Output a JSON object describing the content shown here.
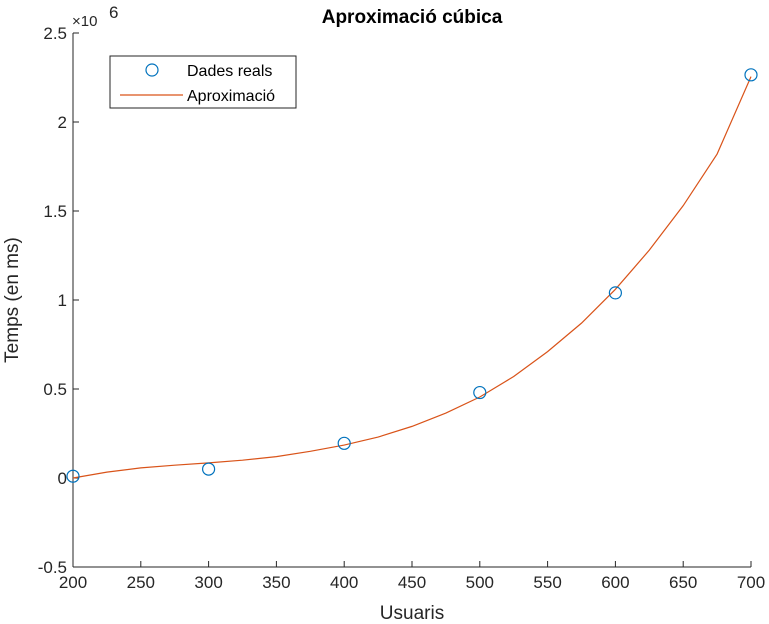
{
  "chart_data": {
    "type": "line",
    "title": "Aproximació cúbica",
    "xlabel": "Usuaris",
    "ylabel": "Temps (en ms)",
    "xlim": [
      200,
      700
    ],
    "ylim": [
      -0.5,
      2.5
    ],
    "y_exponent_base": "×10",
    "y_exponent_power": "6",
    "x_ticks": [
      200,
      250,
      300,
      350,
      400,
      450,
      500,
      550,
      600,
      650,
      700
    ],
    "x_tick_labels": [
      "200",
      "250",
      "300",
      "350",
      "400",
      "450",
      "500",
      "550",
      "600",
      "650",
      "700"
    ],
    "y_ticks": [
      -0.5,
      0,
      0.5,
      1,
      1.5,
      2,
      2.5
    ],
    "y_tick_labels": [
      "-0.5",
      "0",
      "0.5",
      "1",
      "1.5",
      "2",
      "2.5"
    ],
    "grid": false,
    "legend_position": "top-left",
    "series": [
      {
        "name": "Dades reals",
        "style": "markers",
        "marker": "circle",
        "color": "#0072BD",
        "x": [
          200,
          300,
          400,
          500,
          600,
          700
        ],
        "y": [
          0.01,
          0.05,
          0.195,
          0.48,
          1.04,
          2.265
        ]
      },
      {
        "name": "Aproximació",
        "style": "line",
        "color": "#D95319",
        "x": [
          200,
          225,
          250,
          275,
          300,
          325,
          350,
          375,
          400,
          425,
          450,
          475,
          500,
          525,
          550,
          575,
          600,
          625,
          650,
          675,
          700
        ],
        "y": [
          0.0,
          0.033,
          0.057,
          0.072,
          0.085,
          0.1,
          0.12,
          0.15,
          0.185,
          0.23,
          0.29,
          0.365,
          0.455,
          0.57,
          0.71,
          0.87,
          1.06,
          1.28,
          1.53,
          1.82,
          2.255
        ]
      }
    ]
  }
}
